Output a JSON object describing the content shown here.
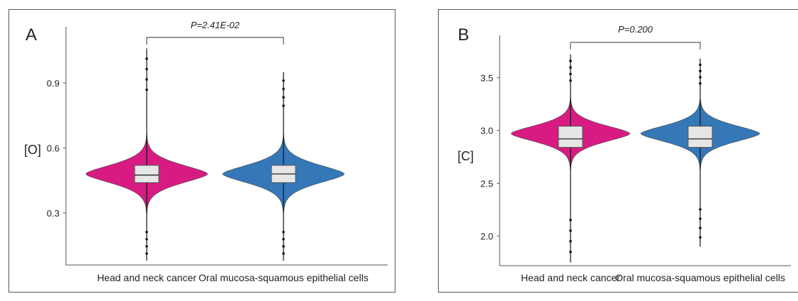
{
  "chart_data": [
    {
      "type": "violin",
      "panel_label": "A",
      "ylabel": "[O]",
      "ylim": [
        0.06,
        1.12
      ],
      "yticks": [
        0.3,
        0.6,
        0.9
      ],
      "categories": [
        "Head and neck cancer",
        "Oral mucosa-squamous epithelial cells"
      ],
      "annotation": "P=2.41E-02",
      "colors": [
        "#d81b83",
        "#3478b8"
      ],
      "series": [
        {
          "category": "Head and neck cancer",
          "min": 0.08,
          "q1": 0.44,
          "median": 0.475,
          "q3": 0.52,
          "max": 1.06,
          "mode": 0.48,
          "spread": 0.075
        },
        {
          "category": "Oral mucosa-squamous epithelial cells",
          "min": 0.08,
          "q1": 0.44,
          "median": 0.48,
          "q3": 0.52,
          "max": 0.95,
          "mode": 0.48,
          "spread": 0.075
        }
      ]
    },
    {
      "type": "violin",
      "panel_label": "B",
      "ylabel": "[C]",
      "ylim": [
        1.72,
        3.82
      ],
      "yticks": [
        2.0,
        2.5,
        3.0,
        3.5
      ],
      "categories": [
        "Head and neck cancer",
        "Oral mucosa-squamous epithelial cells"
      ],
      "annotation": "P=0.200",
      "colors": [
        "#d81b83",
        "#3478b8"
      ],
      "series": [
        {
          "category": "Head and neck cancer",
          "min": 1.75,
          "q1": 2.84,
          "median": 2.92,
          "q3": 3.04,
          "max": 3.72,
          "mode": 2.97,
          "spread": 0.14
        },
        {
          "category": "Oral mucosa-squamous epithelial cells",
          "min": 1.9,
          "q1": 2.84,
          "median": 2.92,
          "q3": 3.04,
          "max": 3.68,
          "mode": 2.97,
          "spread": 0.14
        }
      ]
    }
  ]
}
